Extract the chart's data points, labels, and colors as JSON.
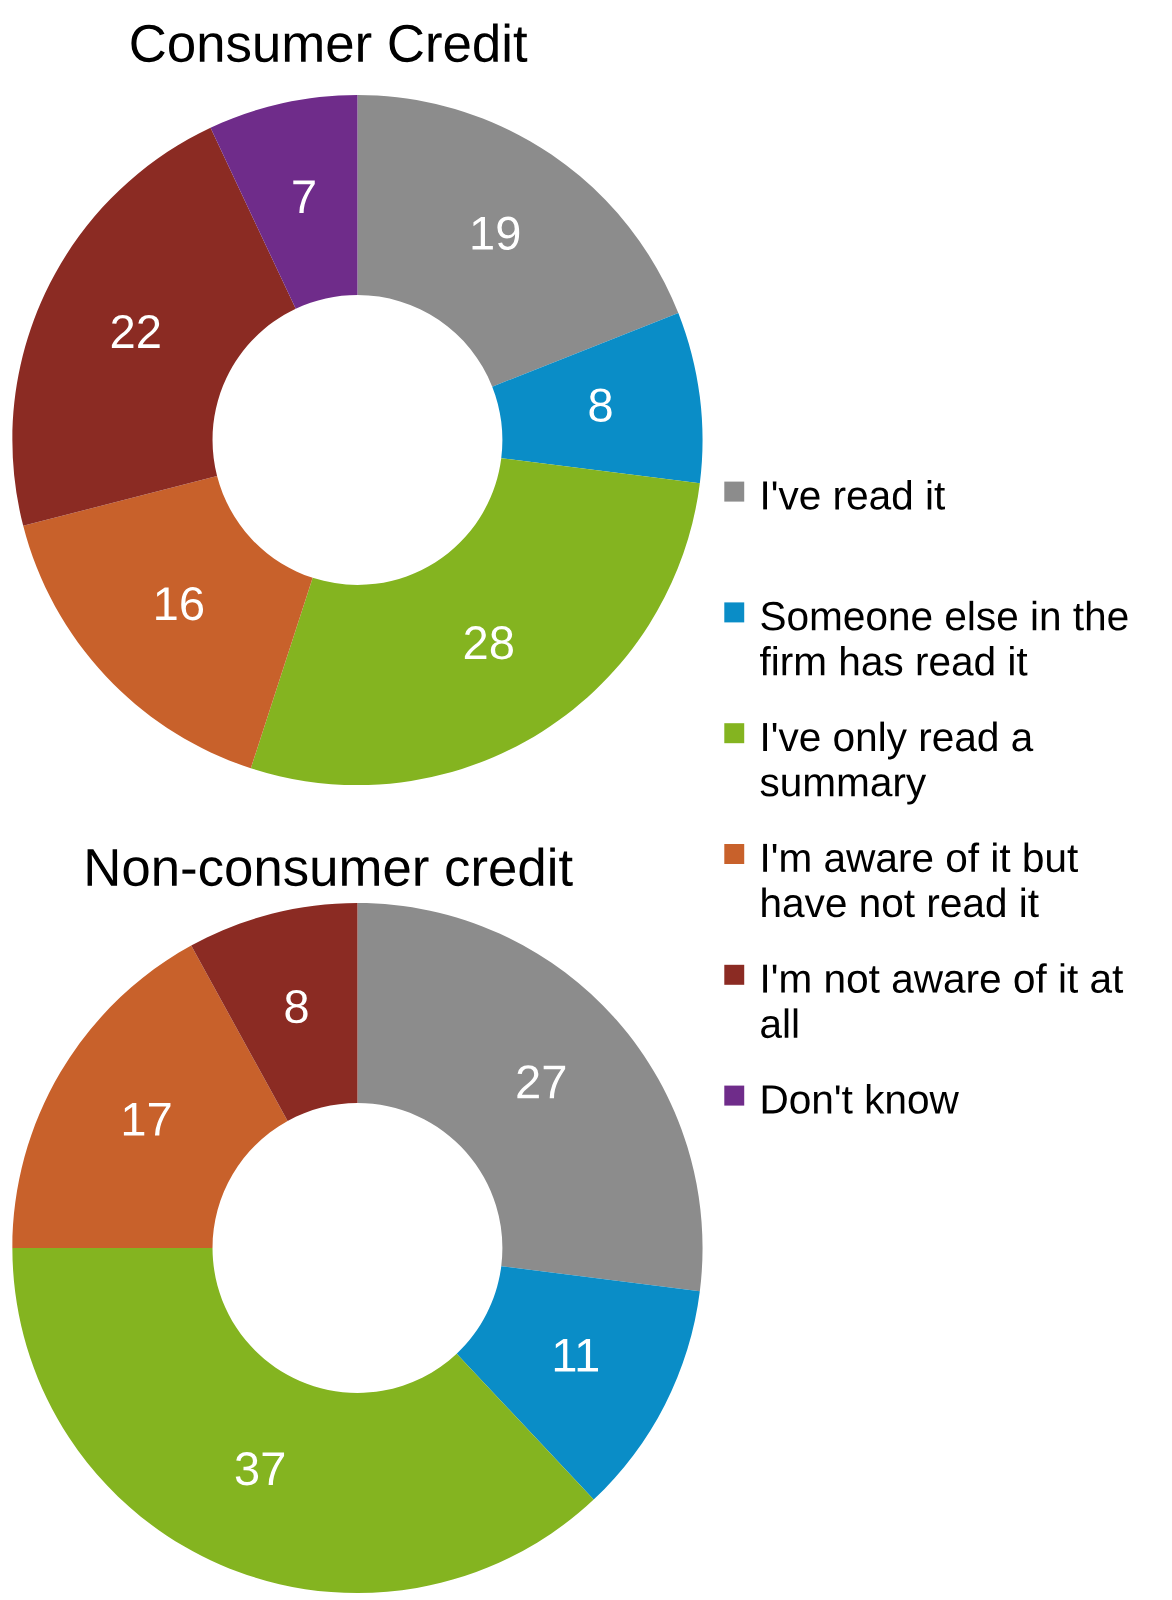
{
  "chart_data": [
    {
      "type": "donut",
      "title": "Consumer Credit",
      "categories": [
        "I've read it",
        "Someone else in the firm has read it",
        "I've only read a summary",
        "I'm aware of it but have not read it",
        "I'm not aware of it at all",
        "Don't know"
      ],
      "values": [
        19,
        8,
        28,
        16,
        22,
        7
      ],
      "colors": [
        "#8c8c8c",
        "#0a8dc7",
        "#84b420",
        "#c8612b",
        "#8b2b23",
        "#6f2c8a"
      ],
      "data_labels": true,
      "legend": "right"
    },
    {
      "type": "donut",
      "title": "Non-consumer credit",
      "categories": [
        null,
        null,
        null,
        null,
        null
      ],
      "values": [
        27,
        11,
        37,
        17,
        8
      ],
      "colors": [
        "#8c8c8c",
        "#0a8dc7",
        "#84b420",
        "#c8612b",
        "#8b2b23"
      ],
      "data_labels": true
    }
  ]
}
